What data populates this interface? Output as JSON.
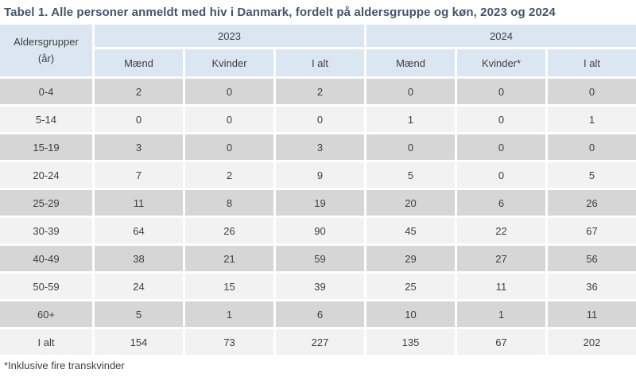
{
  "title": "Tabel 1. Alle personer anmeldt med hiv i Danmark, fordelt på aldersgruppe og køn, 2023 og 2024",
  "table": {
    "corner_header": "Aldersgrupper\n(år)",
    "year_headers": [
      "2023",
      "2024"
    ],
    "sub_headers": [
      "Mænd",
      "Kvinder",
      "I alt",
      "Mænd",
      "Kvinder*",
      "I alt"
    ],
    "rows": [
      {
        "label": "0-4",
        "values": [
          2,
          0,
          2,
          0,
          0,
          0
        ]
      },
      {
        "label": "5-14",
        "values": [
          0,
          0,
          0,
          1,
          0,
          1
        ]
      },
      {
        "label": "15-19",
        "values": [
          3,
          0,
          3,
          0,
          0,
          0
        ]
      },
      {
        "label": "20-24",
        "values": [
          7,
          2,
          9,
          5,
          0,
          5
        ]
      },
      {
        "label": "25-29",
        "values": [
          11,
          8,
          19,
          20,
          6,
          26
        ]
      },
      {
        "label": "30-39",
        "values": [
          64,
          26,
          90,
          45,
          22,
          67
        ]
      },
      {
        "label": "40-49",
        "values": [
          38,
          21,
          59,
          29,
          27,
          56
        ]
      },
      {
        "label": "50-59",
        "values": [
          24,
          15,
          39,
          25,
          11,
          36
        ]
      },
      {
        "label": "60+",
        "values": [
          5,
          1,
          6,
          10,
          1,
          11
        ]
      },
      {
        "label": "I alt",
        "values": [
          154,
          73,
          227,
          135,
          67,
          202
        ]
      }
    ]
  },
  "footnote": "*Inklusive fire transkvinder",
  "colors": {
    "header_blue": "#dae6f1",
    "row_gray": "#d6d6d6",
    "row_light": "#f2f2f2",
    "title_text": "#44546a",
    "body_text": "#3f3f3f",
    "background": "#ffffff"
  }
}
